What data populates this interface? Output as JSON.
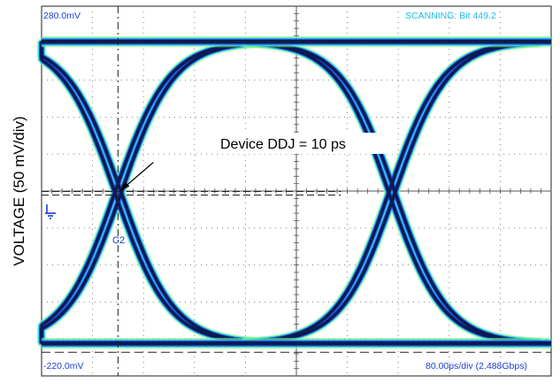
{
  "chart_data": {
    "type": "eye-diagram",
    "ylabel": "VOLTAGE (50 mV/div)",
    "y_top_label": "280.0mV",
    "y_bottom_label": "-220.0mV",
    "status": "SCANNING: Bit 449.2",
    "timebase": "80.00ps/div (2.488Gbps)",
    "channel": "C2",
    "annotation": "Device DDJ = 10 ps",
    "ylim": [
      -220,
      280
    ],
    "v_per_div_mV": 50,
    "t_per_div_ps": 80,
    "divisions": {
      "x": 10,
      "y": 10
    },
    "levels_mV": {
      "high": 232,
      "low": -176
    },
    "crossings": [
      {
        "t_ps": 120,
        "v_mV": 27
      },
      {
        "t_ps": 550,
        "v_mV": 27
      }
    ],
    "ddj_ps": 10,
    "colors": {
      "trace_core": "#0b1a52",
      "trace_mid": "#1d4fd6",
      "trace_edge": "#33d6ff",
      "trace_outer": "#7dff6a",
      "label_cyan": "#1fb8e8",
      "label_blue": "#1c3fd8"
    }
  }
}
